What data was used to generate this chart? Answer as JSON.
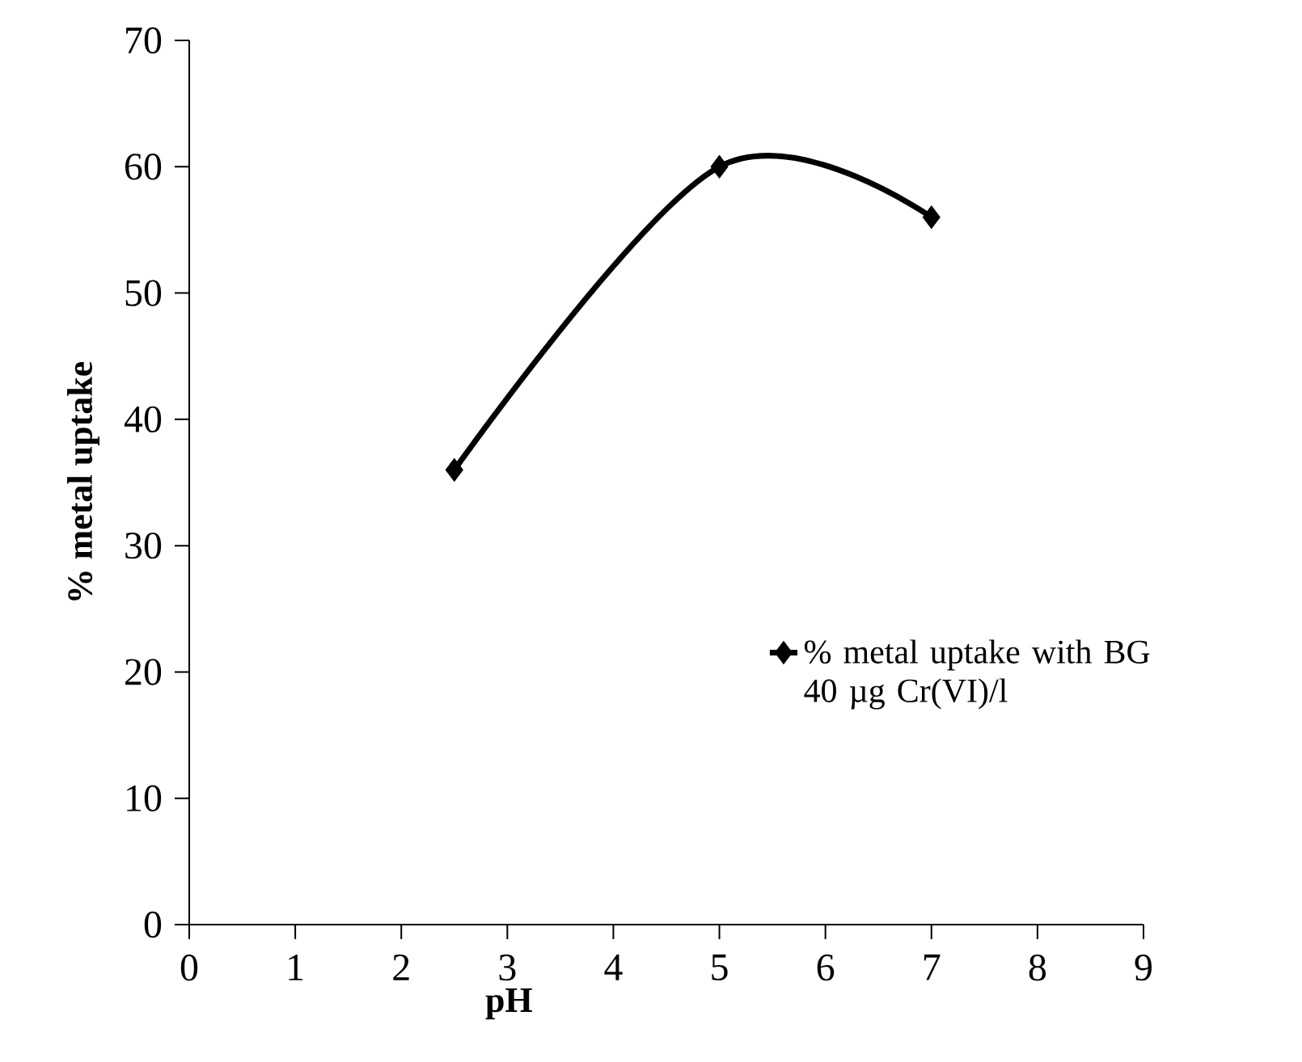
{
  "chart_data": {
    "type": "line",
    "xlabel": "pH",
    "ylabel": "% metal uptake",
    "x": [
      2.5,
      5,
      7
    ],
    "series": [
      {
        "name": "% metal uptake with BG 40 µg Cr(VI)/l",
        "color": "#000000",
        "values": [
          36,
          60,
          56
        ]
      }
    ],
    "xlim": [
      0,
      9
    ],
    "ylim": [
      0,
      70
    ],
    "xticks": [
      0,
      1,
      2,
      3,
      4,
      5,
      6,
      7,
      8,
      9
    ],
    "yticks": [
      0,
      10,
      20,
      30,
      40,
      50,
      60,
      70
    ],
    "legend": "right",
    "marker": "diamond"
  }
}
